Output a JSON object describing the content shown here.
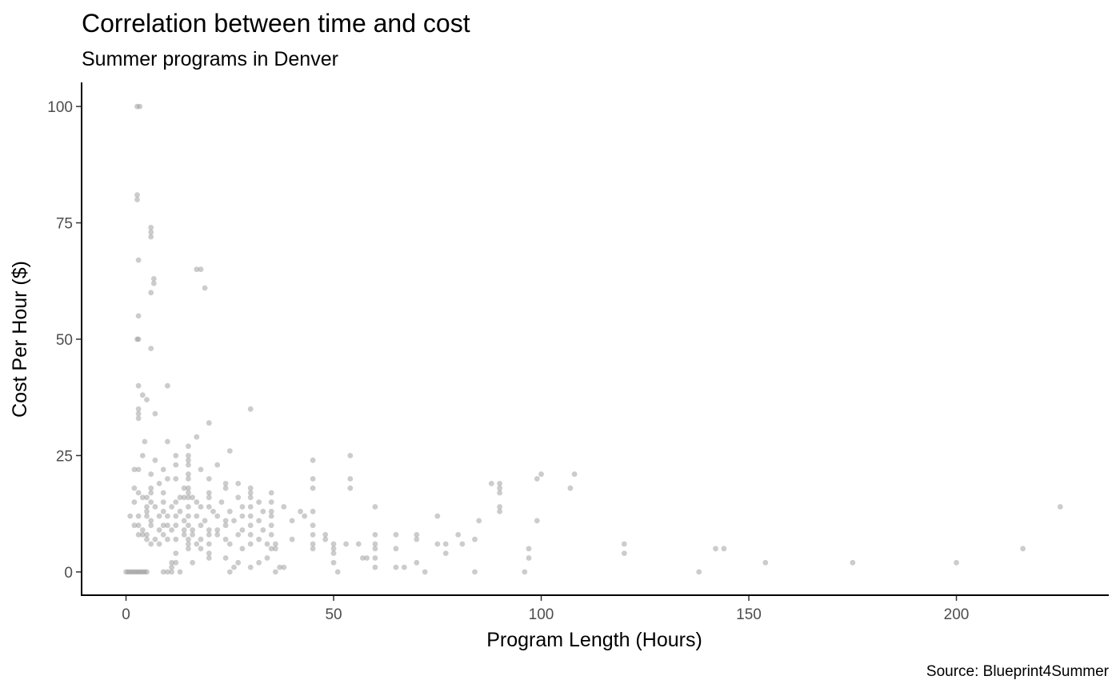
{
  "chart_data": {
    "type": "scatter",
    "title": "Correlation between time and cost",
    "subtitle": "Summer programs in Denver",
    "xlabel": "Program Length (Hours)",
    "ylabel": "Cost Per Hour ($)",
    "caption": "Source: Blueprint4Summer",
    "xlim": [
      -10.7,
      236.7
    ],
    "ylim": [
      -5,
      105
    ],
    "x_ticks": [
      0,
      50,
      100,
      150,
      200
    ],
    "x_tick_labels": [
      "0",
      "50",
      "100",
      "150",
      "200"
    ],
    "y_ticks": [
      0,
      25,
      50,
      75,
      100
    ],
    "y_tick_labels": [
      "0",
      "25",
      "50",
      "75",
      "100"
    ],
    "grid": false,
    "point_color": "#999999",
    "points": [
      [
        2.7,
        100
      ],
      [
        3.3,
        100
      ],
      [
        2.7,
        81
      ],
      [
        2.7,
        80
      ],
      [
        6,
        74
      ],
      [
        6,
        73
      ],
      [
        6,
        72
      ],
      [
        3,
        67
      ],
      [
        18,
        65
      ],
      [
        17,
        65
      ],
      [
        6.7,
        63
      ],
      [
        6.7,
        62
      ],
      [
        19,
        61
      ],
      [
        6,
        60
      ],
      [
        3,
        55
      ],
      [
        2.7,
        50
      ],
      [
        3,
        50
      ],
      [
        6,
        48
      ],
      [
        3,
        40
      ],
      [
        10,
        40
      ],
      [
        4,
        38
      ],
      [
        5,
        37
      ],
      [
        7,
        34
      ],
      [
        3,
        35
      ],
      [
        3,
        34
      ],
      [
        3,
        33
      ],
      [
        30,
        35
      ],
      [
        20,
        32
      ],
      [
        17,
        29
      ],
      [
        15,
        27
      ],
      [
        25,
        26
      ],
      [
        4,
        25
      ],
      [
        12,
        25
      ],
      [
        15,
        25
      ],
      [
        54,
        25
      ],
      [
        45,
        24
      ],
      [
        4.5,
        28
      ],
      [
        10,
        28
      ],
      [
        7,
        24
      ],
      [
        15,
        24
      ],
      [
        22,
        23
      ],
      [
        15,
        23
      ],
      [
        12,
        23
      ],
      [
        18,
        22
      ],
      [
        2,
        22
      ],
      [
        9,
        22
      ],
      [
        3,
        22
      ],
      [
        15,
        21
      ],
      [
        6,
        21
      ],
      [
        100,
        21
      ],
      [
        99,
        20
      ],
      [
        108,
        21
      ],
      [
        10,
        20
      ],
      [
        12,
        20
      ],
      [
        15,
        20
      ],
      [
        20,
        20
      ],
      [
        24,
        19
      ],
      [
        27,
        19
      ],
      [
        54,
        20
      ],
      [
        45,
        20
      ],
      [
        88,
        19
      ],
      [
        90,
        19
      ],
      [
        90,
        18
      ],
      [
        107,
        18
      ],
      [
        2,
        18
      ],
      [
        6,
        18
      ],
      [
        8,
        19
      ],
      [
        14,
        18
      ],
      [
        15,
        18
      ],
      [
        20,
        17
      ],
      [
        30,
        18
      ],
      [
        45,
        18
      ],
      [
        54,
        18
      ],
      [
        90,
        17
      ],
      [
        3,
        17
      ],
      [
        5,
        16
      ],
      [
        4,
        16
      ],
      [
        6,
        17
      ],
      [
        9,
        17
      ],
      [
        13,
        16
      ],
      [
        15,
        17
      ],
      [
        16,
        16
      ],
      [
        20,
        16
      ],
      [
        24,
        18
      ],
      [
        30,
        17
      ],
      [
        35,
        17
      ],
      [
        30,
        16
      ],
      [
        2,
        15
      ],
      [
        5,
        14
      ],
      [
        6,
        15
      ],
      [
        9,
        15
      ],
      [
        12,
        15
      ],
      [
        14,
        16
      ],
      [
        15,
        16
      ],
      [
        17,
        15
      ],
      [
        20,
        14
      ],
      [
        23,
        15
      ],
      [
        27,
        16
      ],
      [
        32,
        15
      ],
      [
        35,
        15
      ],
      [
        5,
        13
      ],
      [
        7,
        14
      ],
      [
        9,
        13
      ],
      [
        11,
        14
      ],
      [
        13,
        13
      ],
      [
        15,
        14
      ],
      [
        18,
        14
      ],
      [
        21,
        13
      ],
      [
        25,
        13
      ],
      [
        28,
        14
      ],
      [
        30,
        14
      ],
      [
        33,
        13
      ],
      [
        35,
        13
      ],
      [
        38,
        14
      ],
      [
        42,
        13
      ],
      [
        45,
        13
      ],
      [
        60,
        14
      ],
      [
        90,
        14
      ],
      [
        90,
        13
      ],
      [
        1,
        12
      ],
      [
        3,
        12
      ],
      [
        5,
        12
      ],
      [
        6,
        11
      ],
      [
        8,
        12
      ],
      [
        10,
        12
      ],
      [
        12,
        12
      ],
      [
        14,
        11
      ],
      [
        15,
        12
      ],
      [
        17,
        12
      ],
      [
        19,
        11
      ],
      [
        22,
        12
      ],
      [
        24,
        11
      ],
      [
        26,
        11
      ],
      [
        28,
        12
      ],
      [
        30,
        12
      ],
      [
        32,
        11
      ],
      [
        35,
        12
      ],
      [
        40,
        11
      ],
      [
        43,
        12
      ],
      [
        75,
        12
      ],
      [
        85,
        11
      ],
      [
        99,
        11
      ],
      [
        2,
        10
      ],
      [
        3,
        10
      ],
      [
        4,
        9
      ],
      [
        6,
        10
      ],
      [
        8,
        9
      ],
      [
        9,
        10
      ],
      [
        10,
        10
      ],
      [
        11,
        9
      ],
      [
        12,
        10
      ],
      [
        14,
        9
      ],
      [
        15,
        10
      ],
      [
        16,
        9
      ],
      [
        18,
        10
      ],
      [
        20,
        9
      ],
      [
        22,
        9
      ],
      [
        24,
        10
      ],
      [
        28,
        9
      ],
      [
        30,
        10
      ],
      [
        33,
        9
      ],
      [
        35,
        10
      ],
      [
        45,
        10
      ],
      [
        3,
        8
      ],
      [
        4,
        8
      ],
      [
        5,
        8
      ],
      [
        7,
        7
      ],
      [
        9,
        8
      ],
      [
        10,
        7
      ],
      [
        12,
        7
      ],
      [
        14,
        8
      ],
      [
        15,
        7
      ],
      [
        16,
        8
      ],
      [
        18,
        7
      ],
      [
        20,
        8
      ],
      [
        22,
        8
      ],
      [
        24,
        7
      ],
      [
        27,
        8
      ],
      [
        30,
        8
      ],
      [
        32,
        7
      ],
      [
        35,
        8
      ],
      [
        45,
        8
      ],
      [
        48,
        8
      ],
      [
        60,
        8
      ],
      [
        65,
        8
      ],
      [
        70,
        8
      ],
      [
        80,
        8
      ],
      [
        5,
        7
      ],
      [
        6,
        6
      ],
      [
        8,
        6
      ],
      [
        15,
        6
      ],
      [
        17,
        6
      ],
      [
        20,
        6
      ],
      [
        25,
        6
      ],
      [
        30,
        6
      ],
      [
        34,
        6
      ],
      [
        36,
        6
      ],
      [
        40,
        7
      ],
      [
        45,
        6
      ],
      [
        48,
        7
      ],
      [
        50,
        6
      ],
      [
        53,
        6
      ],
      [
        56,
        6
      ],
      [
        60,
        6
      ],
      [
        70,
        7
      ],
      [
        75,
        6
      ],
      [
        77,
        6
      ],
      [
        81,
        6
      ],
      [
        84,
        7
      ],
      [
        120,
        6
      ],
      [
        15,
        5
      ],
      [
        18,
        5
      ],
      [
        20,
        4
      ],
      [
        28,
        5
      ],
      [
        35,
        5
      ],
      [
        36,
        5
      ],
      [
        45,
        5
      ],
      [
        50,
        5
      ],
      [
        60,
        5
      ],
      [
        65,
        5
      ],
      [
        77,
        4
      ],
      [
        97,
        5
      ],
      [
        120,
        4
      ],
      [
        142,
        5
      ],
      [
        144,
        5
      ],
      [
        216,
        5
      ],
      [
        225,
        14
      ],
      [
        12,
        4
      ],
      [
        20,
        3
      ],
      [
        24,
        3
      ],
      [
        34,
        3
      ],
      [
        50,
        4
      ],
      [
        57,
        3
      ],
      [
        58,
        3
      ],
      [
        60,
        3
      ],
      [
        97,
        3
      ],
      [
        11,
        2
      ],
      [
        12,
        2
      ],
      [
        16,
        2
      ],
      [
        27,
        2
      ],
      [
        32,
        2
      ],
      [
        50,
        2
      ],
      [
        70,
        2
      ],
      [
        154,
        2
      ],
      [
        175,
        2
      ],
      [
        200,
        2
      ],
      [
        11,
        1
      ],
      [
        26,
        1
      ],
      [
        30,
        1
      ],
      [
        37,
        1
      ],
      [
        38,
        1
      ],
      [
        60,
        1
      ],
      [
        65,
        1
      ],
      [
        67,
        1
      ],
      [
        0,
        0
      ],
      [
        0.5,
        0
      ],
      [
        1,
        0
      ],
      [
        1.5,
        0
      ],
      [
        2,
        0
      ],
      [
        2.5,
        0
      ],
      [
        3,
        0
      ],
      [
        3.5,
        0
      ],
      [
        4,
        0
      ],
      [
        4.5,
        0
      ],
      [
        5,
        0
      ],
      [
        9,
        0
      ],
      [
        10,
        0
      ],
      [
        11,
        0
      ],
      [
        13,
        0
      ],
      [
        25,
        0
      ],
      [
        36,
        0
      ],
      [
        51,
        0
      ],
      [
        72,
        0
      ],
      [
        84,
        0
      ],
      [
        96,
        0
      ],
      [
        138,
        0
      ]
    ]
  }
}
